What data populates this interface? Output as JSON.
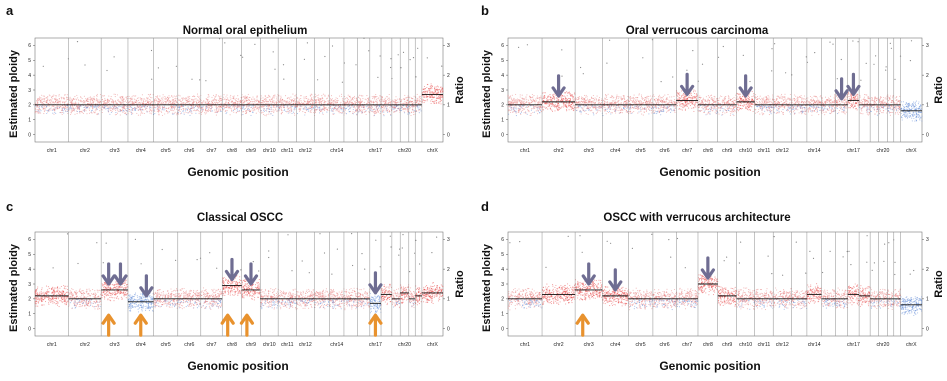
{
  "chart_data": [
    {
      "panel": "a",
      "type": "scatter",
      "title": "Normal oral epithelium",
      "xlabel": "Genomic position",
      "ylabel": "Estimated ploidy",
      "ylabel_right": "Ratio",
      "ylim": [
        -0.5,
        6.5
      ],
      "yticks": [
        0,
        1,
        2,
        3,
        4,
        5,
        6
      ],
      "y2ticks": [
        0,
        1,
        2,
        3
      ],
      "chromosomes": [
        "chr1",
        "chr2",
        "chr3",
        "chr4",
        "chr5",
        "chr6",
        "chr7",
        "chr8",
        "chr9",
        "chr10",
        "chr11",
        "chr12",
        "chr13",
        "chr14",
        "chr15",
        "chr16",
        "chr17",
        "chr18",
        "chr19",
        "chr20",
        "chr21",
        "chr22",
        "chrX"
      ],
      "chr_labels_shown": [
        "chr1",
        "chr2",
        "chr3",
        "chr4",
        "chr5",
        "chr6",
        "chr7",
        "chr8",
        "chr9",
        "chr10",
        "chr11",
        "chr12",
        "chr14",
        "chr17",
        "chr20",
        "chrX"
      ],
      "segment_ploidy": [
        2,
        2,
        2,
        2,
        2,
        2,
        2,
        2,
        2,
        2,
        2,
        2,
        2,
        2,
        2,
        2,
        2,
        2,
        2,
        2,
        2,
        2,
        2.7
      ],
      "gain_arrows": [],
      "loss_arrows": []
    },
    {
      "panel": "b",
      "type": "scatter",
      "title": "Oral verrucous carcinoma",
      "xlabel": "Genomic position",
      "ylabel": "Estimated ploidy",
      "ylabel_right": "Ratio",
      "ylim": [
        -0.5,
        6.5
      ],
      "yticks": [
        0,
        1,
        2,
        3,
        4,
        5,
        6
      ],
      "y2ticks": [
        0,
        1,
        2,
        3
      ],
      "chromosomes": [
        "chr1",
        "chr2",
        "chr3",
        "chr4",
        "chr5",
        "chr6",
        "chr7",
        "chr8",
        "chr9",
        "chr10",
        "chr11",
        "chr12",
        "chr13",
        "chr14",
        "chr15",
        "chr16",
        "chr17",
        "chr18",
        "chr19",
        "chr20",
        "chr21",
        "chr22",
        "chrX"
      ],
      "chr_labels_shown": [
        "chr1",
        "chr2",
        "chr3",
        "chr4",
        "chr5",
        "chr6",
        "chr7",
        "chr8",
        "chr9",
        "chr10",
        "chr11",
        "chr12",
        "chr14",
        "chr17",
        "chr20",
        "chrX"
      ],
      "segment_ploidy": [
        2,
        2.2,
        2,
        2,
        2,
        2,
        2.3,
        2,
        2,
        2.2,
        2,
        2,
        2,
        2,
        2,
        2,
        2.3,
        2,
        2,
        2,
        2,
        2,
        1.6
      ],
      "gain_arrows": [
        "chr2",
        "chr7",
        "chr10",
        "chr16",
        "chr17"
      ],
      "loss_arrows": []
    },
    {
      "panel": "c",
      "type": "scatter",
      "title": "Classical OSCC",
      "xlabel": "Genomic position",
      "ylabel": "Estimated ploidy",
      "ylabel_right": "Ratio",
      "ylim": [
        -0.5,
        6.5
      ],
      "yticks": [
        0,
        1,
        2,
        3,
        4,
        5,
        6
      ],
      "y2ticks": [
        0,
        1,
        2,
        3
      ],
      "chromosomes": [
        "chr1",
        "chr2",
        "chr3",
        "chr4",
        "chr5",
        "chr6",
        "chr7",
        "chr8",
        "chr9",
        "chr10",
        "chr11",
        "chr12",
        "chr13",
        "chr14",
        "chr15",
        "chr16",
        "chr17",
        "chr18",
        "chr19",
        "chr20",
        "chr21",
        "chr22",
        "chrX"
      ],
      "chr_labels_shown": [
        "chr1",
        "chr2",
        "chr3",
        "chr4",
        "chr5",
        "chr6",
        "chr7",
        "chr8",
        "chr9",
        "chr10",
        "chr11",
        "chr12",
        "chr14",
        "chr17",
        "chr20",
        "chrX"
      ],
      "segment_ploidy": [
        2.2,
        2,
        2.6,
        1.8,
        2,
        2,
        2,
        2.9,
        2.6,
        2,
        2,
        2,
        2,
        2,
        2,
        2,
        1.7,
        2.3,
        2,
        2.4,
        2,
        2.2,
        2.4
      ],
      "gain_arrows": [
        "chr3p",
        "chr3q",
        "chr4q",
        "chr8",
        "chr9"
      ],
      "loss_arrows": [
        "chr3p",
        "chr4",
        "chr8p",
        "chr9p",
        "chr17"
      ],
      "gain_arrows_extra": [
        "chr17"
      ]
    },
    {
      "panel": "d",
      "type": "scatter",
      "title": "OSCC with verrucous architecture",
      "xlabel": "Genomic position",
      "ylabel": "Estimated ploidy",
      "ylabel_right": "Ratio",
      "ylim": [
        -0.5,
        6.5
      ],
      "yticks": [
        0,
        1,
        2,
        3,
        4,
        5,
        6
      ],
      "y2ticks": [
        0,
        1,
        2,
        3
      ],
      "chromosomes": [
        "chr1",
        "chr2",
        "chr3",
        "chr4",
        "chr5",
        "chr6",
        "chr7",
        "chr8",
        "chr9",
        "chr10",
        "chr11",
        "chr12",
        "chr13",
        "chr14",
        "chr15",
        "chr16",
        "chr17",
        "chr18",
        "chr19",
        "chr20",
        "chr21",
        "chr22",
        "chrX"
      ],
      "chr_labels_shown": [
        "chr1",
        "chr2",
        "chr3",
        "chr4",
        "chr5",
        "chr6",
        "chr7",
        "chr8",
        "chr9",
        "chr10",
        "chr11",
        "chr12",
        "chr14",
        "chr17",
        "chr20",
        "chrX"
      ],
      "segment_ploidy": [
        2,
        2.3,
        2.6,
        2.2,
        2,
        2,
        2,
        3,
        2.2,
        2,
        2,
        2,
        2,
        2.3,
        2,
        2,
        2.3,
        2.2,
        2,
        2,
        2,
        2,
        1.6
      ],
      "gain_arrows": [
        "chr3",
        "chr4",
        "chr8"
      ],
      "loss_arrows": [
        "chr3p"
      ]
    }
  ],
  "colors": {
    "gain_points": "#e84a4a",
    "loss_points": "#5b86d6",
    "neutral_points": "#e88080",
    "segment_line": "#111111",
    "gain_arrow": "#6f6d92",
    "loss_arrow": "#e8922e"
  }
}
